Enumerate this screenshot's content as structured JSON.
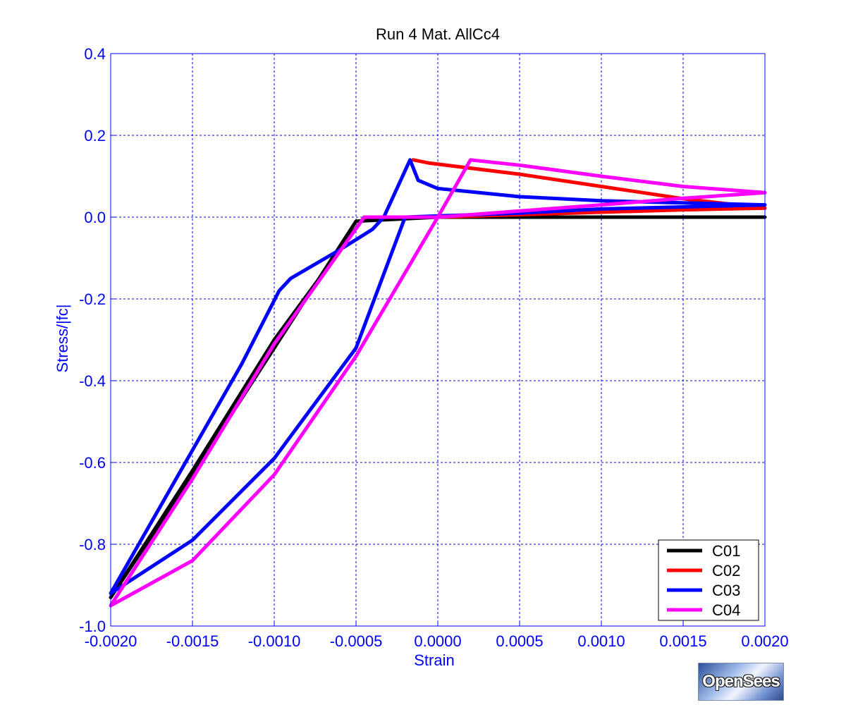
{
  "chart_data": {
    "type": "line",
    "title": "Run 4   Mat. AllCc4",
    "xlabel": "Strain",
    "ylabel": "Stress/|fc|",
    "xlim": [
      -0.002,
      0.002
    ],
    "ylim": [
      -1.0,
      0.4
    ],
    "grid": true,
    "legend_position": "bottom-right",
    "x_ticks": [
      -0.002,
      -0.0015,
      -0.001,
      -0.0005,
      0.0,
      0.0005,
      0.001,
      0.0015,
      0.002
    ],
    "x_tick_labels": [
      "-0.0020",
      "-0.0015",
      "-0.0010",
      "-0.0005",
      "0.0000",
      "0.0005",
      "0.0010",
      "0.0015",
      "0.0020"
    ],
    "y_ticks": [
      0.4,
      0.2,
      0.0,
      -0.2,
      -0.4,
      -0.6,
      -0.8,
      -1.0
    ],
    "y_tick_labels": [
      "0.4",
      "0.2",
      "0.0",
      "-0.2",
      "-0.4",
      "-0.6",
      "-0.8",
      "-1.0"
    ],
    "series": [
      {
        "name": "C01",
        "color": "#000000",
        "x": [
          -0.002,
          -0.0015,
          -0.001,
          -0.0005,
          0.0,
          0.002,
          0.0,
          -0.00045,
          -0.001,
          -0.0015,
          -0.002
        ],
        "y": [
          -0.93,
          -0.63,
          -0.32,
          -0.01,
          0.0,
          0.0,
          0.0,
          0.0,
          -0.3,
          -0.62,
          -0.93
        ]
      },
      {
        "name": "C02",
        "color": "#ff0000",
        "x": [
          -0.00015,
          -5e-05,
          0.0005,
          0.001,
          0.0015,
          0.002,
          0.0015,
          0.001,
          0.0005,
          0.0
        ],
        "y": [
          0.14,
          0.132,
          0.105,
          0.075,
          0.045,
          0.022,
          0.018,
          0.012,
          0.006,
          0.0
        ]
      },
      {
        "name": "C03",
        "color": "#0000ff",
        "x": [
          -0.002,
          -0.0015,
          -0.0012,
          -0.00097,
          -0.0009,
          -0.0006,
          -0.0004,
          -0.00033,
          -0.00017,
          -0.00012,
          0.0,
          0.0005,
          0.001,
          0.0015,
          0.002,
          0.0015,
          0.001,
          0.0005,
          -0.0002,
          -0.0005,
          -0.001,
          -0.0015,
          -0.002
        ],
        "y": [
          -0.92,
          -0.57,
          -0.36,
          -0.18,
          -0.15,
          -0.08,
          -0.03,
          0.0,
          0.14,
          0.09,
          0.07,
          0.05,
          0.04,
          0.035,
          0.03,
          0.025,
          0.02,
          0.01,
          0.0,
          -0.32,
          -0.59,
          -0.79,
          -0.92
        ]
      },
      {
        "name": "C04",
        "color": "#ff00ff",
        "x": [
          -0.002,
          -0.0015,
          -0.001,
          -0.00045,
          0.0,
          0.0002,
          0.0005,
          0.001,
          0.0015,
          0.002,
          0.0015,
          0.001,
          0.0005,
          0.0,
          -0.0005,
          -0.001,
          -0.0015,
          -0.002
        ],
        "y": [
          -0.95,
          -0.64,
          -0.31,
          0.0,
          0.0,
          0.14,
          0.127,
          0.1,
          0.075,
          0.06,
          0.046,
          0.03,
          0.015,
          0.0,
          -0.34,
          -0.63,
          -0.84,
          -0.95
        ]
      }
    ]
  },
  "watermark": {
    "label": "OpenSees"
  }
}
